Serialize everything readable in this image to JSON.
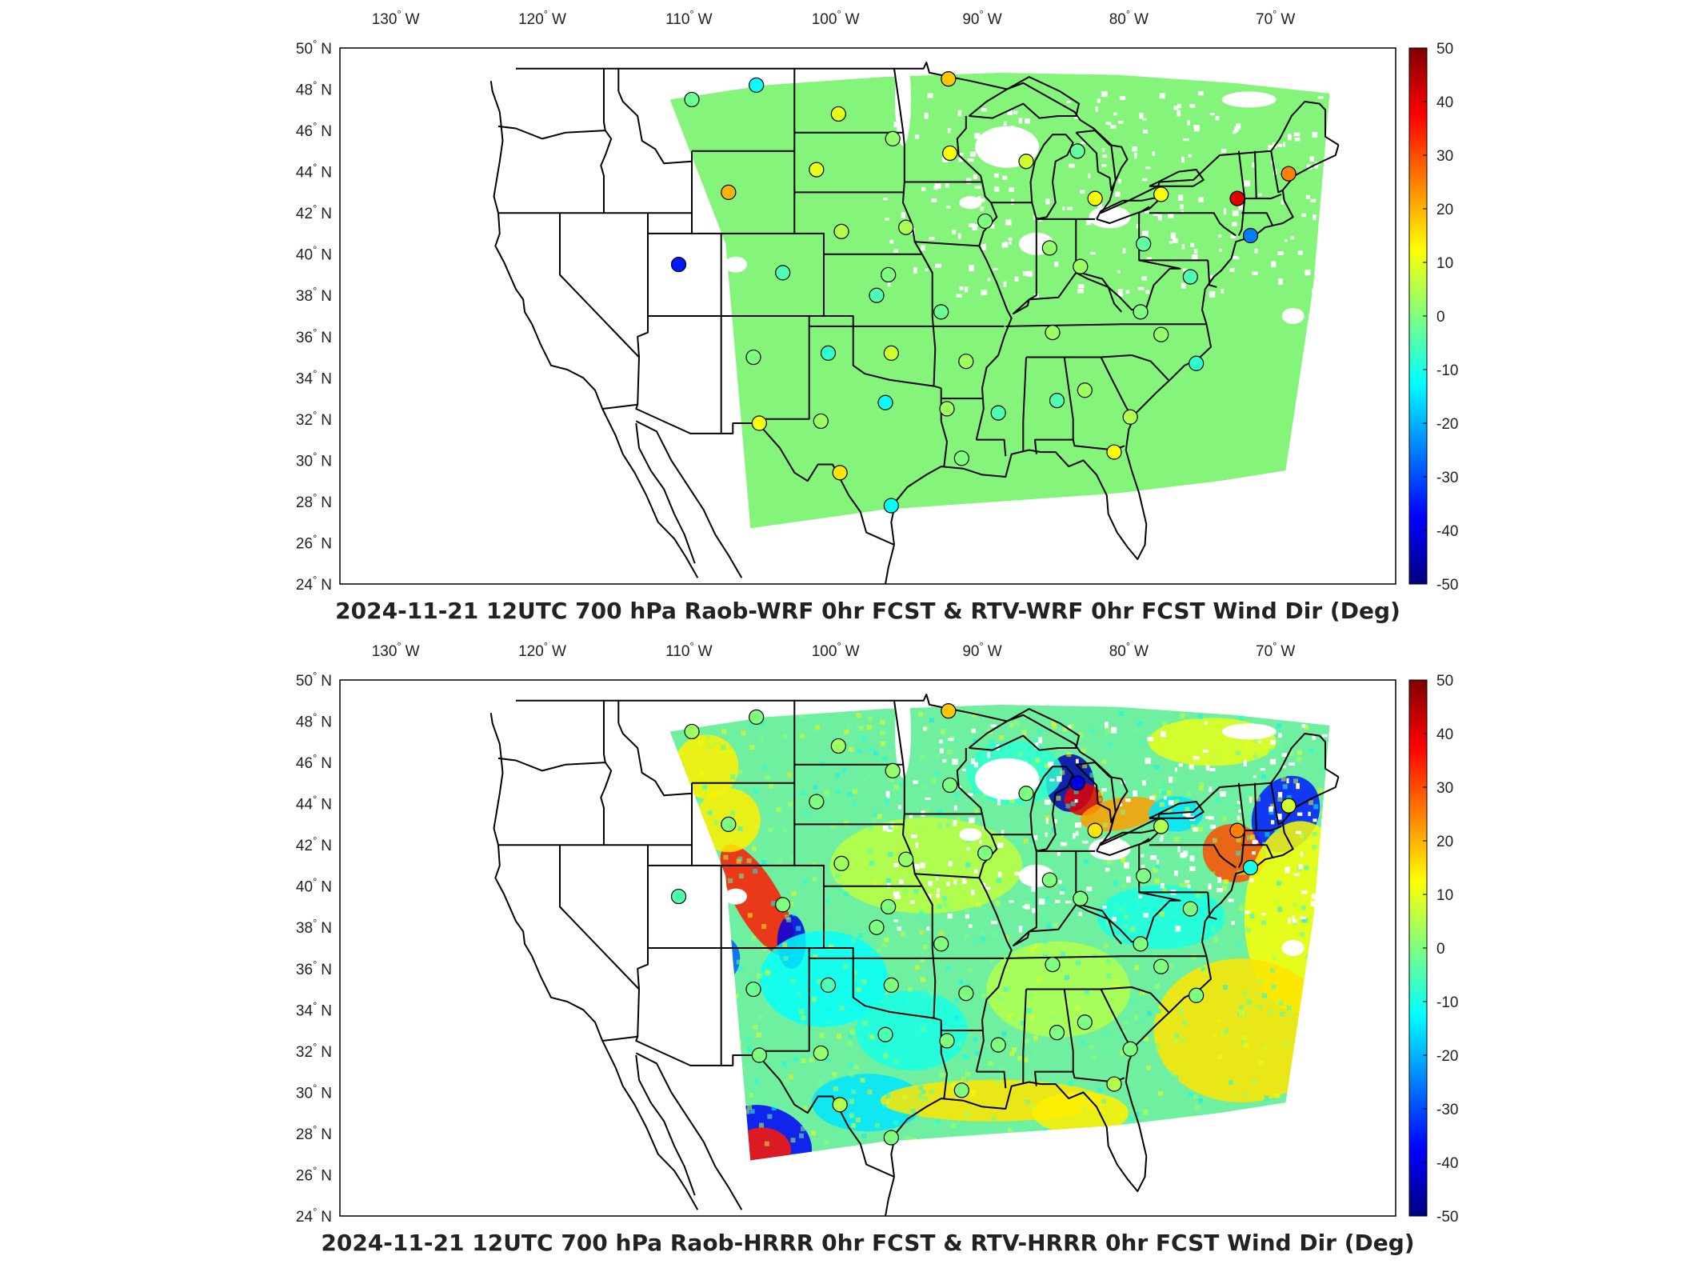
{
  "panels": [
    {
      "title": "2024-11-21 12UTC 700 hPa Raob-WRF 0hr FCST & RTV-WRF 0hr FCST Wind Dir (Deg)",
      "field_style": "uniform",
      "field_color": "#84f57a"
    },
    {
      "title": "2024-11-21 12UTC 700 hPa Raob-HRRR 0hr FCST & RTV-HRRR 0hr FCST Wind Dir (Deg)",
      "field_style": "varied",
      "field_color": "#6ff0a0"
    }
  ],
  "axes": {
    "lon_ticks": [
      {
        "deg": "130",
        "hemi": "W"
      },
      {
        "deg": "120",
        "hemi": "W"
      },
      {
        "deg": "110",
        "hemi": "W"
      },
      {
        "deg": "100",
        "hemi": "W"
      },
      {
        "deg": "90",
        "hemi": "W"
      },
      {
        "deg": "80",
        "hemi": "W"
      },
      {
        "deg": "70",
        "hemi": "W"
      }
    ],
    "lat_ticks": [
      {
        "deg": "50",
        "hemi": "N"
      },
      {
        "deg": "48",
        "hemi": "N"
      },
      {
        "deg": "46",
        "hemi": "N"
      },
      {
        "deg": "44",
        "hemi": "N"
      },
      {
        "deg": "42",
        "hemi": "N"
      },
      {
        "deg": "40",
        "hemi": "N"
      },
      {
        "deg": "38",
        "hemi": "N"
      },
      {
        "deg": "36",
        "hemi": "N"
      },
      {
        "deg": "34",
        "hemi": "N"
      },
      {
        "deg": "32",
        "hemi": "N"
      },
      {
        "deg": "30",
        "hemi": "N"
      },
      {
        "deg": "28",
        "hemi": "N"
      },
      {
        "deg": "26",
        "hemi": "N"
      },
      {
        "deg": "24",
        "hemi": "N"
      }
    ]
  },
  "colorbar": {
    "ticks": [
      "50",
      "40",
      "30",
      "20",
      "10",
      "0",
      "-10",
      "-20",
      "-30",
      "-40",
      "-50"
    ],
    "range": [
      -50,
      50
    ],
    "colors": [
      "#00007f",
      "#0000ff",
      "#007fff",
      "#00ffff",
      "#7fff7f",
      "#ffff00",
      "#ff7f00",
      "#ff0000",
      "#7f0000"
    ]
  },
  "stations": [
    {
      "lon": -111.0,
      "lat": 47.5,
      "v1": -2,
      "v2": 3
    },
    {
      "lon": -106.6,
      "lat": 48.2,
      "v1": -12,
      "v2": 0
    },
    {
      "lon": -101.0,
      "lat": 46.8,
      "v1": 10,
      "v2": 3
    },
    {
      "lon": -97.3,
      "lat": 45.6,
      "v1": 2,
      "v2": 2
    },
    {
      "lon": -93.5,
      "lat": 48.5,
      "v1": 18,
      "v2": 18
    },
    {
      "lon": -108.5,
      "lat": 43.0,
      "v1": 20,
      "v2": 0
    },
    {
      "lon": -102.5,
      "lat": 44.1,
      "v1": 10,
      "v2": 0
    },
    {
      "lon": -93.4,
      "lat": 44.9,
      "v1": 12,
      "v2": 0
    },
    {
      "lon": -88.2,
      "lat": 44.5,
      "v1": 8,
      "v2": 0
    },
    {
      "lon": -84.7,
      "lat": 45.0,
      "v1": -3,
      "v2": -40
    },
    {
      "lon": -83.5,
      "lat": 42.7,
      "v1": 13,
      "v2": 15
    },
    {
      "lon": -79.0,
      "lat": 42.9,
      "v1": 12,
      "v2": 5
    },
    {
      "lon": -73.8,
      "lat": 42.7,
      "v1": 40,
      "v2": 25
    },
    {
      "lon": -70.3,
      "lat": 43.9,
      "v1": 25,
      "v2": 8
    },
    {
      "lon": -72.9,
      "lat": 40.9,
      "v1": -25,
      "v2": -10
    },
    {
      "lon": -100.8,
      "lat": 41.1,
      "v1": 5,
      "v2": 3
    },
    {
      "lon": -96.4,
      "lat": 41.3,
      "v1": 4,
      "v2": 2
    },
    {
      "lon": -91.0,
      "lat": 41.6,
      "v1": 0,
      "v2": 0
    },
    {
      "lon": -86.6,
      "lat": 40.3,
      "v1": 2,
      "v2": 0
    },
    {
      "lon": -80.2,
      "lat": 40.5,
      "v1": -3,
      "v2": 0
    },
    {
      "lon": -111.9,
      "lat": 39.5,
      "v1": -35,
      "v2": -5
    },
    {
      "lon": -104.8,
      "lat": 39.1,
      "v1": -5,
      "v2": 0
    },
    {
      "lon": -97.6,
      "lat": 39.0,
      "v1": 0,
      "v2": 0
    },
    {
      "lon": -84.5,
      "lat": 39.4,
      "v1": 3,
      "v2": 0
    },
    {
      "lon": -77.0,
      "lat": 38.9,
      "v1": -5,
      "v2": 0
    },
    {
      "lon": -98.4,
      "lat": 38.0,
      "v1": -5,
      "v2": 0
    },
    {
      "lon": -94.0,
      "lat": 37.2,
      "v1": -2,
      "v2": 0
    },
    {
      "lon": -86.4,
      "lat": 36.2,
      "v1": 3,
      "v2": 0
    },
    {
      "lon": -80.4,
      "lat": 37.2,
      "v1": 0,
      "v2": 0
    },
    {
      "lon": -79.0,
      "lat": 36.1,
      "v1": 2,
      "v2": 0
    },
    {
      "lon": -106.8,
      "lat": 35.0,
      "v1": 0,
      "v2": -2
    },
    {
      "lon": -101.7,
      "lat": 35.2,
      "v1": -8,
      "v2": -5
    },
    {
      "lon": -97.4,
      "lat": 35.2,
      "v1": 8,
      "v2": 0
    },
    {
      "lon": -92.3,
      "lat": 34.8,
      "v1": 3,
      "v2": 0
    },
    {
      "lon": -76.6,
      "lat": 34.7,
      "v1": -8,
      "v2": 0
    },
    {
      "lon": -97.8,
      "lat": 32.8,
      "v1": -12,
      "v2": -5
    },
    {
      "lon": -93.6,
      "lat": 32.5,
      "v1": 3,
      "v2": 0
    },
    {
      "lon": -90.1,
      "lat": 32.3,
      "v1": -5,
      "v2": 0
    },
    {
      "lon": -86.1,
      "lat": 32.9,
      "v1": -5,
      "v2": 0
    },
    {
      "lon": -84.2,
      "lat": 33.4,
      "v1": 3,
      "v2": 0
    },
    {
      "lon": -81.1,
      "lat": 32.1,
      "v1": 5,
      "v2": 0
    },
    {
      "lon": -106.4,
      "lat": 31.8,
      "v1": 12,
      "v2": 0
    },
    {
      "lon": -102.2,
      "lat": 31.9,
      "v1": 3,
      "v2": 2
    },
    {
      "lon": -92.6,
      "lat": 30.1,
      "v1": 0,
      "v2": 0
    },
    {
      "lon": -82.2,
      "lat": 30.4,
      "v1": 12,
      "v2": 5
    },
    {
      "lon": -100.9,
      "lat": 29.4,
      "v1": 15,
      "v2": 5
    },
    {
      "lon": -97.4,
      "lat": 27.8,
      "v1": -12,
      "v2": 0
    }
  ]
}
